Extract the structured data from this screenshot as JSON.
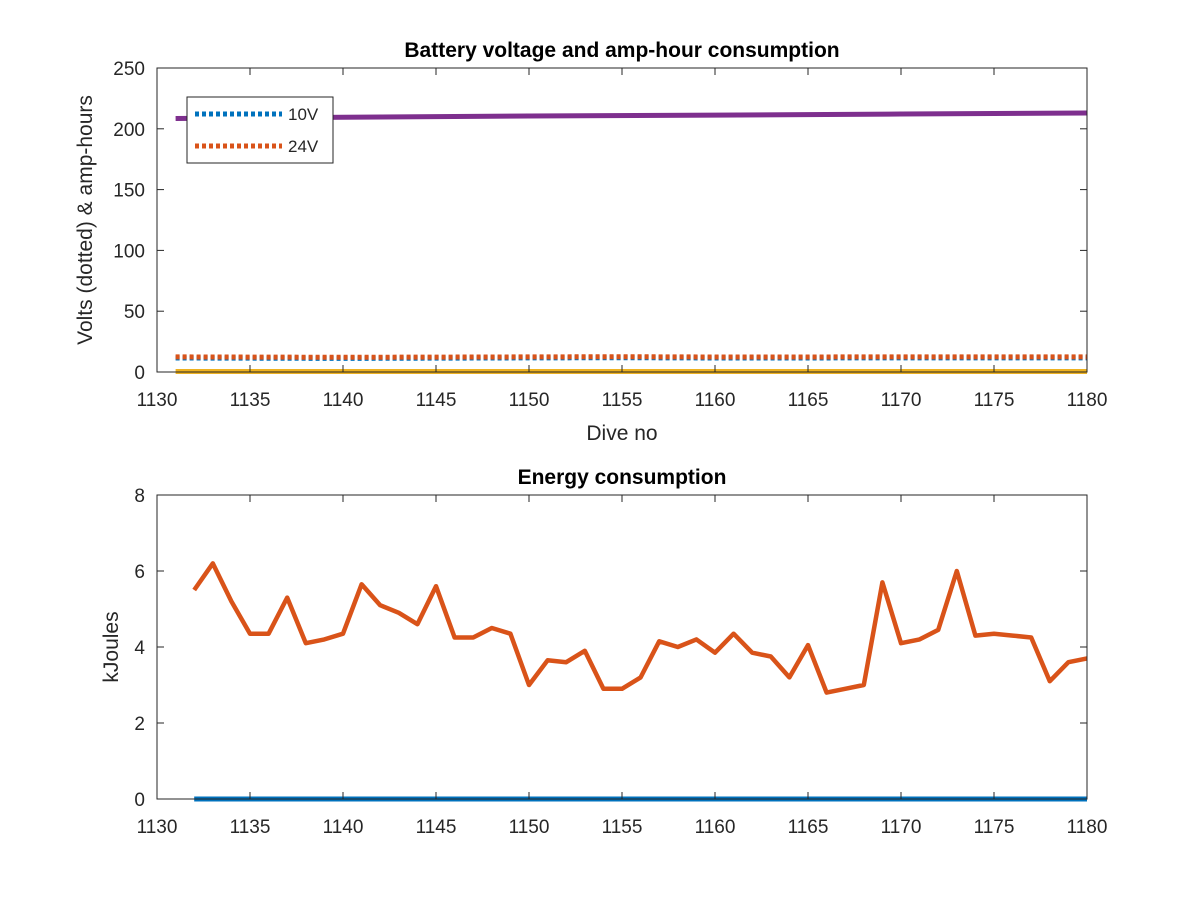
{
  "chart_data": [
    {
      "type": "line",
      "title": "Battery voltage and amp-hour consumption",
      "xlabel": "Dive no",
      "ylabel": "Volts (dotted) & amp-hours",
      "xlim": [
        1130,
        1180
      ],
      "ylim": [
        0,
        250
      ],
      "xticks": [
        1130,
        1135,
        1140,
        1145,
        1150,
        1155,
        1160,
        1165,
        1170,
        1175,
        1180
      ],
      "yticks": [
        0,
        50,
        100,
        150,
        200,
        250
      ],
      "grid": false,
      "legend": {
        "position": "top-left",
        "entries": [
          "10V",
          "24V"
        ]
      },
      "series": [
        {
          "name": "10V",
          "color": "#0072BD",
          "style": "dotted",
          "x": [
            1131,
            1140,
            1150,
            1155,
            1160,
            1170,
            1180
          ],
          "y": [
            11.5,
            11.2,
            11.6,
            11.8,
            11.5,
            11.6,
            11.6
          ]
        },
        {
          "name": "24V",
          "color": "#D95319",
          "style": "dotted",
          "x": [
            1131,
            1140,
            1150,
            1155,
            1160,
            1170,
            1180
          ],
          "y": [
            12.4,
            12.1,
            12.4,
            12.6,
            12.3,
            12.4,
            12.4
          ]
        },
        {
          "color": "#EDB120",
          "style": "solid",
          "x": [
            1131,
            1180
          ],
          "y": [
            0.4,
            0.4
          ]
        },
        {
          "color": "#7E2F8E",
          "style": "solid",
          "x": [
            1131,
            1140,
            1150,
            1160,
            1170,
            1180
          ],
          "y": [
            208.5,
            209.5,
            210.5,
            211.3,
            212.2,
            213.0
          ]
        }
      ]
    },
    {
      "type": "line",
      "title": "Energy consumption",
      "xlabel": "",
      "ylabel": "kJoules",
      "xlim": [
        1130,
        1180
      ],
      "ylim": [
        0,
        8
      ],
      "xticks": [
        1130,
        1135,
        1140,
        1145,
        1150,
        1155,
        1160,
        1165,
        1170,
        1175,
        1180
      ],
      "yticks": [
        0,
        2,
        4,
        6,
        8
      ],
      "grid": false,
      "series": [
        {
          "color": "#D95319",
          "style": "solid",
          "x": [
            1132,
            1133,
            1134,
            1135,
            1136,
            1137,
            1138,
            1139,
            1140,
            1141,
            1142,
            1143,
            1144,
            1145,
            1146,
            1147,
            1148,
            1149,
            1150,
            1151,
            1152,
            1153,
            1154,
            1155,
            1156,
            1157,
            1158,
            1159,
            1160,
            1161,
            1162,
            1163,
            1164,
            1165,
            1166,
            1167,
            1168,
            1169,
            1170,
            1171,
            1172,
            1173,
            1174,
            1175,
            1176,
            1177,
            1178,
            1179,
            1180
          ],
          "y": [
            5.5,
            6.2,
            5.2,
            4.35,
            4.35,
            5.3,
            4.1,
            4.2,
            4.35,
            5.65,
            5.1,
            4.9,
            4.6,
            5.6,
            4.25,
            4.25,
            4.5,
            4.35,
            3.0,
            3.65,
            3.6,
            3.9,
            2.9,
            2.9,
            3.2,
            4.15,
            4.0,
            4.2,
            3.85,
            4.35,
            3.85,
            3.75,
            3.2,
            4.05,
            2.8,
            2.9,
            3.0,
            5.7,
            4.1,
            4.2,
            4.45,
            6.0,
            4.3,
            4.35,
            4.3,
            4.25,
            3.1,
            3.6,
            3.7
          ]
        },
        {
          "color": "#0072BD",
          "style": "solid",
          "x": [
            1132,
            1180
          ],
          "y": [
            0,
            0
          ]
        }
      ]
    }
  ]
}
